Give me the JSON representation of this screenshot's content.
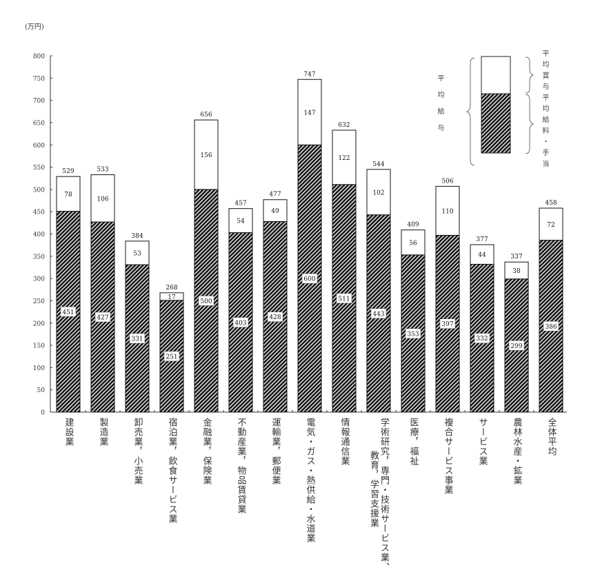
{
  "chart_data": {
    "type": "bar",
    "stacked": true,
    "unit_label": "(万円)",
    "ylim": [
      0,
      800
    ],
    "yticks": [
      0,
      50,
      100,
      150,
      200,
      250,
      300,
      350,
      400,
      450,
      500,
      550,
      600,
      650,
      700,
      750,
      800
    ],
    "categories": [
      [
        "建設業"
      ],
      [
        "製造業"
      ],
      [
        "卸売業，小売業"
      ],
      [
        "宿泊業，飲食サービス業"
      ],
      [
        "金融業，保険業"
      ],
      [
        "不動産業，物品賃貸業"
      ],
      [
        "運輸業，郵便業"
      ],
      [
        "電気・ガス・熱供給・水道業"
      ],
      [
        "情報通信業"
      ],
      [
        "学術研究，専門・技術サービス業、",
        "教育，学習支援業"
      ],
      [
        "医療，福祉"
      ],
      [
        "複合サービス事業"
      ],
      [
        "サービス業"
      ],
      [
        "農林水産・鉱業"
      ],
      [
        "全体平均"
      ]
    ],
    "series": [
      {
        "name": "平均給料・手当",
        "pattern": "hatched",
        "values": [
          451,
          427,
          331,
          251,
          500,
          403,
          428,
          600,
          511,
          443,
          353,
          397,
          332,
          299,
          386
        ]
      },
      {
        "name": "平均賞与",
        "pattern": "white",
        "values": [
          78,
          106,
          53,
          17,
          156,
          54,
          49,
          147,
          122,
          102,
          56,
          110,
          44,
          38,
          72
        ]
      }
    ],
    "totals": [
      529,
      533,
      384,
      268,
      656,
      457,
      477,
      747,
      632,
      544,
      409,
      506,
      377,
      337,
      458
    ],
    "legend": {
      "placement": "top-right",
      "total_label": "平均給与",
      "bonus_label": "平均賞与",
      "salary_label": "平均給料・手当"
    },
    "grid": false
  }
}
